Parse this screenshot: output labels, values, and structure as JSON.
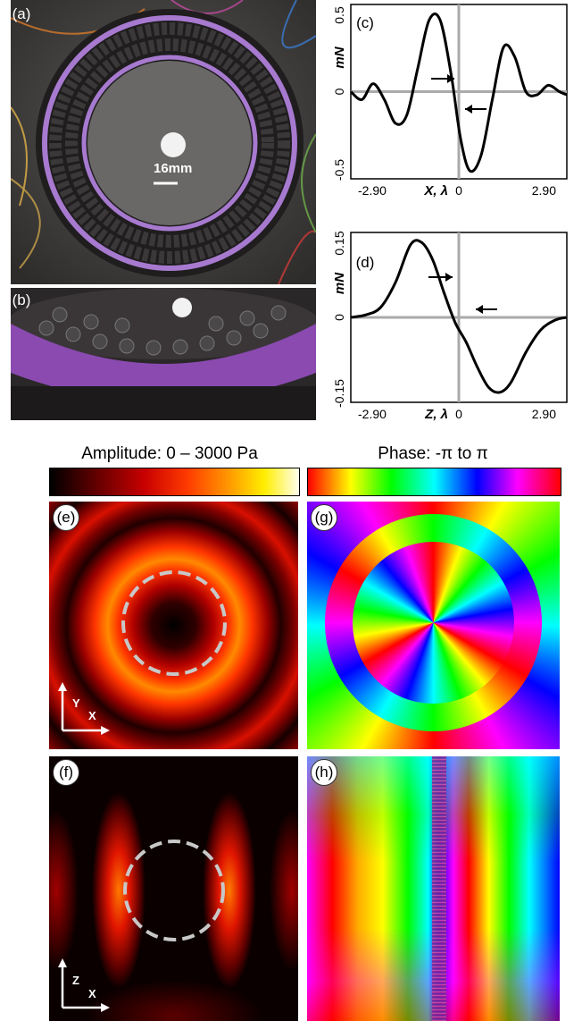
{
  "panels": {
    "a": {
      "label": "(a)",
      "scale": "16mm"
    },
    "b": {
      "label": "(b)"
    },
    "c": {
      "label": "(c)"
    },
    "d": {
      "label": "(d)"
    },
    "e": {
      "label": "(e)",
      "axis_v": "Y",
      "axis_h": "X"
    },
    "f": {
      "label": "(f)",
      "axis_v": "Z",
      "axis_h": "X"
    },
    "g": {
      "label": "(g)"
    },
    "h": {
      "label": "(h)"
    }
  },
  "colorbars": {
    "amplitude": "Amplitude: 0 – 3000 Pa",
    "phase": "Phase: -π to π"
  },
  "chart_data": [
    {
      "id": "c",
      "type": "line",
      "xlabel": "X, λ",
      "ylabel": "mN",
      "xticks": [
        "-2.90",
        "0",
        "2.90"
      ],
      "yticks": [
        "0.5",
        "0",
        "-0.5"
      ],
      "xlim": [
        -2.9,
        2.9
      ],
      "ylim": [
        -0.55,
        0.55
      ],
      "x": [
        -2.9,
        -2.6,
        -2.3,
        -2.0,
        -1.7,
        -1.4,
        -1.1,
        -0.8,
        -0.5,
        -0.2,
        0.05,
        0.3,
        0.6,
        0.9,
        1.2,
        1.5,
        1.8,
        2.1,
        2.4,
        2.7,
        2.9
      ],
      "y": [
        0.0,
        -0.05,
        0.05,
        -0.05,
        -0.2,
        -0.15,
        0.15,
        0.45,
        0.45,
        0.1,
        -0.3,
        -0.5,
        -0.4,
        -0.05,
        0.28,
        0.22,
        0.0,
        -0.02,
        0.04,
        0.0,
        -0.02
      ]
    },
    {
      "id": "d",
      "type": "line",
      "xlabel": "Z, λ",
      "ylabel": "mN",
      "xticks": [
        "-2.90",
        "0",
        "2.90"
      ],
      "yticks": [
        "0.15",
        "0",
        "-0.15"
      ],
      "xlim": [
        -2.9,
        2.9
      ],
      "ylim": [
        -0.17,
        0.17
      ],
      "x": [
        -2.9,
        -2.5,
        -2.1,
        -1.7,
        -1.3,
        -1.0,
        -0.7,
        -0.4,
        -0.1,
        0.2,
        0.5,
        0.8,
        1.1,
        1.4,
        1.8,
        2.2,
        2.6,
        2.9
      ],
      "y": [
        0.0,
        0.005,
        0.02,
        0.07,
        0.145,
        0.15,
        0.115,
        0.05,
        -0.01,
        -0.05,
        -0.1,
        -0.14,
        -0.15,
        -0.13,
        -0.07,
        -0.025,
        -0.005,
        0.0
      ]
    }
  ]
}
